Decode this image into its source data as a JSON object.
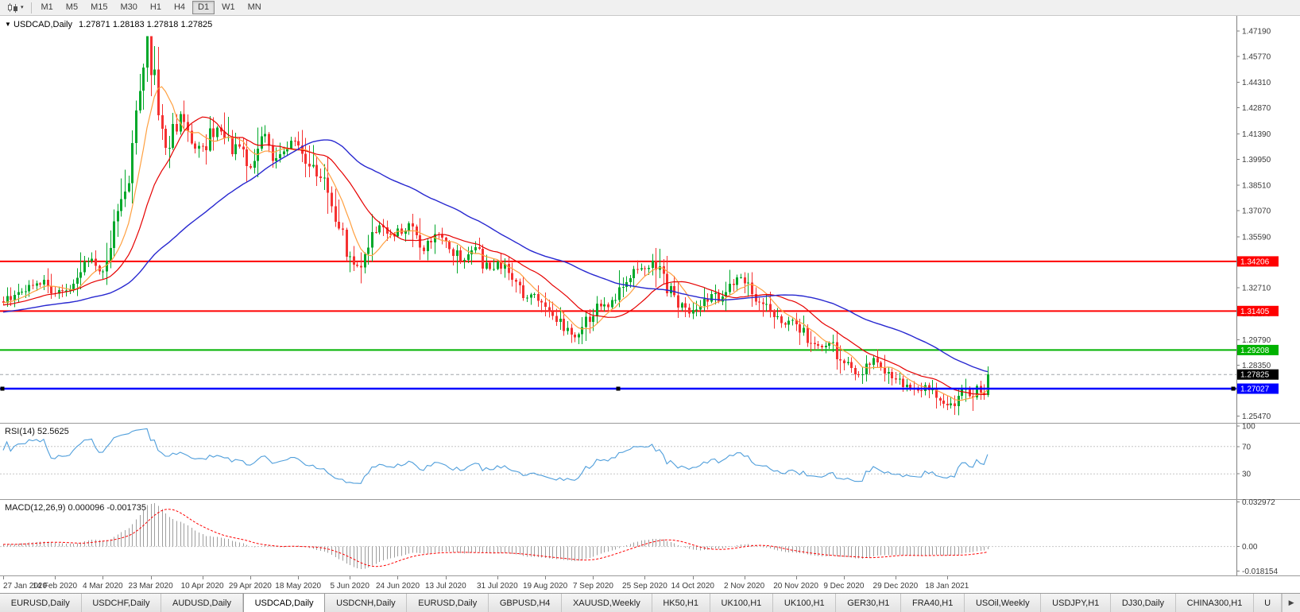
{
  "icons": {
    "chart_type": "candlestick-chart-icon",
    "dropdown": "▾",
    "symbol_marker": "▼",
    "tab_scroll": "▶"
  },
  "toolbar": {
    "timeframes": [
      {
        "label": "M1",
        "active": false
      },
      {
        "label": "M5",
        "active": false
      },
      {
        "label": "M15",
        "active": false
      },
      {
        "label": "M30",
        "active": false
      },
      {
        "label": "H1",
        "active": false
      },
      {
        "label": "H4",
        "active": false
      },
      {
        "label": "D1",
        "active": true
      },
      {
        "label": "W1",
        "active": false
      },
      {
        "label": "MN",
        "active": false
      }
    ]
  },
  "chart_header": {
    "title": "USDCAD,Daily",
    "ohlc": "1.27871 1.28183 1.27818 1.27825"
  },
  "chart_data": {
    "type": "candlestick",
    "symbol": "USDCAD",
    "timeframe": "Daily",
    "title": "USDCAD,Daily",
    "ohlc_header": {
      "open": 1.27871,
      "high": 1.28183,
      "low": 1.27818,
      "close": 1.27825
    },
    "bars": 268,
    "price_waypoints": [
      [
        0,
        1.3195
      ],
      [
        4,
        1.3245
      ],
      [
        8,
        1.329
      ],
      [
        11,
        1.331
      ],
      [
        14,
        1.3245
      ],
      [
        17,
        1.3265
      ],
      [
        20,
        1.331
      ],
      [
        22,
        1.339
      ],
      [
        24,
        1.343
      ],
      [
        26,
        1.336
      ],
      [
        28,
        1.34
      ],
      [
        30,
        1.366
      ],
      [
        32,
        1.373
      ],
      [
        34,
        1.392
      ],
      [
        36,
        1.424
      ],
      [
        38,
        1.456
      ],
      [
        39,
        1.464
      ],
      [
        40,
        1.448
      ],
      [
        41,
        1.451
      ],
      [
        42,
        1.425
      ],
      [
        44,
        1.406
      ],
      [
        46,
        1.415
      ],
      [
        48,
        1.426
      ],
      [
        50,
        1.416
      ],
      [
        52,
        1.408
      ],
      [
        54,
        1.405
      ],
      [
        56,
        1.413
      ],
      [
        58,
        1.418
      ],
      [
        60,
        1.412
      ],
      [
        62,
        1.403
      ],
      [
        64,
        1.408
      ],
      [
        67,
        1.395
      ],
      [
        69,
        1.406
      ],
      [
        71,
        1.412
      ],
      [
        73,
        1.398
      ],
      [
        75,
        1.403
      ],
      [
        77,
        1.408
      ],
      [
        79,
        1.411
      ],
      [
        81,
        1.406
      ],
      [
        83,
        1.398
      ],
      [
        85,
        1.39
      ],
      [
        87,
        1.386
      ],
      [
        89,
        1.375
      ],
      [
        91,
        1.36
      ],
      [
        93,
        1.348
      ],
      [
        95,
        1.342
      ],
      [
        96,
        1.339
      ],
      [
        98,
        1.345
      ],
      [
        100,
        1.356
      ],
      [
        102,
        1.362
      ],
      [
        104,
        1.358
      ],
      [
        106,
        1.3555
      ],
      [
        108,
        1.36
      ],
      [
        110,
        1.364
      ],
      [
        112,
        1.356
      ],
      [
        114,
        1.349
      ],
      [
        116,
        1.353
      ],
      [
        118,
        1.3575
      ],
      [
        120,
        1.3545
      ],
      [
        122,
        1.349
      ],
      [
        124,
        1.342
      ],
      [
        126,
        1.345
      ],
      [
        128,
        1.3495
      ],
      [
        130,
        1.3415
      ],
      [
        132,
        1.338
      ],
      [
        134,
        1.3415
      ],
      [
        136,
        1.3375
      ],
      [
        138,
        1.33
      ],
      [
        140,
        1.326
      ],
      [
        142,
        1.3215
      ],
      [
        144,
        1.3245
      ],
      [
        146,
        1.319
      ],
      [
        147,
        1.3165
      ],
      [
        149,
        1.3115
      ],
      [
        151,
        1.307
      ],
      [
        153,
        1.3035
      ],
      [
        156,
        1.2997
      ],
      [
        158,
        1.307
      ],
      [
        160,
        1.313
      ],
      [
        162,
        1.3175
      ],
      [
        164,
        1.3155
      ],
      [
        166,
        1.323
      ],
      [
        168,
        1.33
      ],
      [
        170,
        1.333
      ],
      [
        172,
        1.338
      ],
      [
        174,
        1.339
      ],
      [
        176,
        1.3418
      ],
      [
        178,
        1.335
      ],
      [
        180,
        1.328
      ],
      [
        182,
        1.321
      ],
      [
        184,
        1.316
      ],
      [
        186,
        1.313
      ],
      [
        188,
        1.315
      ],
      [
        190,
        1.32
      ],
      [
        192,
        1.324
      ],
      [
        194,
        1.319
      ],
      [
        196,
        1.325
      ],
      [
        198,
        1.331
      ],
      [
        200,
        1.333
      ],
      [
        202,
        1.329
      ],
      [
        204,
        1.323
      ],
      [
        206,
        1.318
      ],
      [
        208,
        1.313
      ],
      [
        210,
        1.309
      ],
      [
        212,
        1.306
      ],
      [
        214,
        1.308
      ],
      [
        216,
        1.304
      ],
      [
        218,
        1.299
      ],
      [
        220,
        1.295
      ],
      [
        222,
        1.293
      ],
      [
        224,
        1.296
      ],
      [
        226,
        1.29
      ],
      [
        228,
        1.285
      ],
      [
        230,
        1.282
      ],
      [
        232,
        1.279
      ],
      [
        234,
        1.283
      ],
      [
        236,
        1.287
      ],
      [
        238,
        1.284
      ],
      [
        240,
        1.278
      ],
      [
        242,
        1.276
      ],
      [
        244,
        1.273
      ],
      [
        246,
        1.271
      ],
      [
        248,
        1.269
      ],
      [
        250,
        1.272
      ],
      [
        252,
        1.268
      ],
      [
        254,
        1.264
      ],
      [
        256,
        1.261
      ],
      [
        257,
        1.26
      ],
      [
        258,
        1.264
      ],
      [
        259,
        1.268
      ],
      [
        260,
        1.271
      ],
      [
        261,
        1.269
      ],
      [
        262,
        1.266
      ],
      [
        263,
        1.269
      ],
      [
        264,
        1.272
      ],
      [
        265,
        1.27
      ],
      [
        266,
        1.269
      ],
      [
        267,
        1.27825
      ]
    ],
    "prehistory": {
      "bars": 60,
      "from": 1.306,
      "to": 1.3195
    },
    "noise": {
      "seed": 20210127,
      "base_vol": 0.0012,
      "slope_mult": 2.2,
      "max_vol": 0.012,
      "wick_mult": 1.1,
      "wick_base": 0.0006
    },
    "y_axis": {
      "min": 1.251,
      "max": 1.4805,
      "tick_labels": [
        "1.47190",
        "1.45770",
        "1.44310",
        "1.42870",
        "1.41390",
        "1.39950",
        "1.38510",
        "1.37070",
        "1.35590",
        "1.34150",
        "1.32710",
        "1.31270",
        "1.29790",
        "1.28350",
        "1.26910",
        "1.25470"
      ]
    },
    "x_axis": {
      "labels": [
        {
          "bar": 0,
          "text": "27 Jan 2020"
        },
        {
          "bar": 14,
          "text": "14 Feb 2020"
        },
        {
          "bar": 27,
          "text": "4 Mar 2020"
        },
        {
          "bar": 40,
          "text": "23 Mar 2020"
        },
        {
          "bar": 54,
          "text": "10 Apr 2020"
        },
        {
          "bar": 67,
          "text": "29 Apr 2020"
        },
        {
          "bar": 80,
          "text": "18 May 2020"
        },
        {
          "bar": 94,
          "text": "5 Jun 2020"
        },
        {
          "bar": 107,
          "text": "24 Jun 2020"
        },
        {
          "bar": 120,
          "text": "13 Jul 2020"
        },
        {
          "bar": 134,
          "text": "31 Jul 2020"
        },
        {
          "bar": 147,
          "text": "19 Aug 2020"
        },
        {
          "bar": 160,
          "text": "7 Sep 2020"
        },
        {
          "bar": 174,
          "text": "25 Sep 2020"
        },
        {
          "bar": 187,
          "text": "14 Oct 2020"
        },
        {
          "bar": 201,
          "text": "2 Nov 2020"
        },
        {
          "bar": 215,
          "text": "20 Nov 2020"
        },
        {
          "bar": 228,
          "text": "9 Dec 2020"
        },
        {
          "bar": 242,
          "text": "29 Dec 2020"
        },
        {
          "bar": 256,
          "text": "18 Jan 2021"
        }
      ]
    },
    "horizontal_lines": [
      {
        "price": 1.34206,
        "label": "1.34206",
        "color": "#FF0000",
        "width": 2,
        "selected": false
      },
      {
        "price": 1.31405,
        "label": "1.31405",
        "color": "#FF0000",
        "width": 2,
        "selected": false
      },
      {
        "price": 1.29208,
        "label": "1.29208",
        "color": "#00B200",
        "width": 2,
        "selected": false
      },
      {
        "price": 1.27027,
        "label": "1.27027",
        "color": "#0000FF",
        "width": 2.5,
        "selected": true
      }
    ],
    "current_price": {
      "value": 1.27825,
      "label": "1.27825",
      "box_color": "#000000"
    },
    "candle_colors": {
      "up": "#00A82A",
      "down": "#F53131"
    },
    "moving_averages": [
      {
        "period": 8,
        "color": "#FFA040",
        "width": 1.2
      },
      {
        "period": 20,
        "color": "#E60000",
        "width": 1.2
      },
      {
        "period": 55,
        "color": "#2828D0",
        "width": 1.4
      }
    ],
    "indicators": {
      "rsi": {
        "label": "RSI(14) 52.5625",
        "period": 14,
        "value": 52.5625,
        "levels": [
          70,
          30
        ],
        "axis_labels": [
          "100",
          "70",
          "30"
        ],
        "line_color": "#4F9EDB",
        "level_color": "#c6c6c6"
      },
      "macd": {
        "label": "MACD(12,26,9) 0.000096 -0.001735",
        "fast": 12,
        "slow": 26,
        "signal_period": 9,
        "current": {
          "histogram": 9.6e-05,
          "signal": -0.001735
        },
        "axis_labels": [
          "0.032972",
          "0.00",
          "-0.018154"
        ],
        "scale": {
          "min": -0.0185,
          "max": 0.0333
        },
        "histogram_color": "#9e9e9e",
        "signal_color": "#FF0000"
      }
    }
  },
  "bottom_tabs": {
    "scroll_right_icon": "▶",
    "tabs": [
      {
        "label": "EURUSD,Daily",
        "active": false
      },
      {
        "label": "USDCHF,Daily",
        "active": false
      },
      {
        "label": "AUDUSD,Daily",
        "active": false
      },
      {
        "label": "USDCAD,Daily",
        "active": true
      },
      {
        "label": "USDCNH,Daily",
        "active": false
      },
      {
        "label": "EURUSD,Daily",
        "active": false
      },
      {
        "label": "GBPUSD,H4",
        "active": false
      },
      {
        "label": "XAUUSD,Weekly",
        "active": false
      },
      {
        "label": "HK50,H1",
        "active": false
      },
      {
        "label": "UK100,H1",
        "active": false
      },
      {
        "label": "UK100,H1",
        "active": false
      },
      {
        "label": "GER30,H1",
        "active": false
      },
      {
        "label": "FRA40,H1",
        "active": false
      },
      {
        "label": "USOil,Weekly",
        "active": false
      },
      {
        "label": "USDJPY,H1",
        "active": false
      },
      {
        "label": "DJ30,Daily",
        "active": false
      },
      {
        "label": "CHINA300,H1",
        "active": false
      },
      {
        "label": "U",
        "active": false,
        "partial": true
      }
    ]
  }
}
